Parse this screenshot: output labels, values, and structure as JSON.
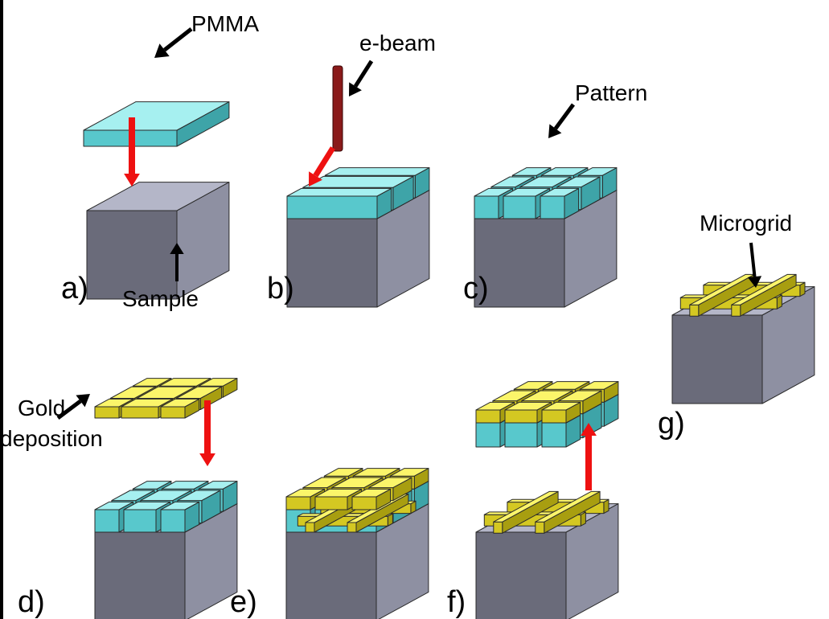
{
  "labels": {
    "pmma": "PMMA",
    "ebeam": "e-beam",
    "pattern": "Pattern",
    "microgrid": "Microgrid",
    "sample": "Sample",
    "gold_line1": "Gold",
    "gold_line2": "deposition"
  },
  "panels": {
    "a": "a)",
    "b": "b)",
    "c": "c)",
    "d": "d)",
    "e": "e)",
    "f": "f)",
    "g": "g)"
  },
  "colors": {
    "sample_top": "#b4b6c8",
    "sample_front": "#6a6b7a",
    "sample_side": "#8e90a2",
    "pmma_top": "#a6f0f0",
    "pmma_front": "#58c8cc",
    "pmma_side": "#3ea4a8",
    "gold_top": "#fbf56a",
    "gold_front": "#d4c822",
    "gold_side": "#a89e10",
    "ebeam": "#8a1a1a",
    "arrow_red": "#ee1111",
    "arrow_black": "#000000"
  }
}
